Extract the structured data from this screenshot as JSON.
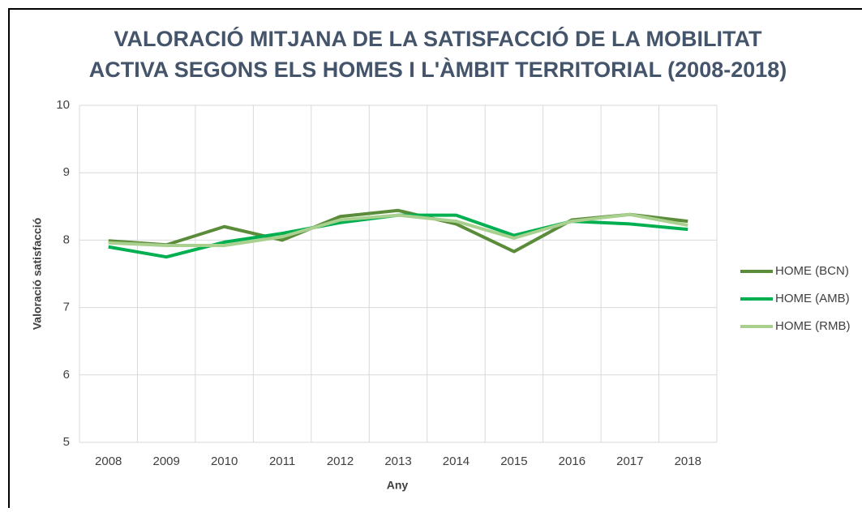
{
  "chart_data": {
    "type": "line",
    "title": [
      "VALORACIÓ MITJANA DE LA SATISFACCIÓ DE LA MOBILITAT",
      "ACTIVA SEGONS ELS HOMES I L'ÀMBIT TERRITORIAL (2008-2018)"
    ],
    "x_label": "Any",
    "y_label": "Valoració satisfacció",
    "categories": [
      "2008",
      "2009",
      "2010",
      "2011",
      "2012",
      "2013",
      "2014",
      "2015",
      "2016",
      "2017",
      "2018"
    ],
    "series": [
      {
        "name": "HOME (BCN)",
        "color": "#5b8c3a",
        "values": [
          7.99,
          7.93,
          8.2,
          8.0,
          8.35,
          8.44,
          8.24,
          7.83,
          8.3,
          8.38,
          8.28
        ]
      },
      {
        "name": "HOME (AMB)",
        "color": "#00b050",
        "values": [
          7.9,
          7.75,
          7.97,
          8.1,
          8.26,
          8.37,
          8.37,
          8.07,
          8.28,
          8.24,
          8.16
        ]
      },
      {
        "name": "HOME (RMB)",
        "color": "#a9d08e",
        "values": [
          7.96,
          7.92,
          7.92,
          8.05,
          8.3,
          8.37,
          8.28,
          8.03,
          8.28,
          8.38,
          8.22
        ]
      }
    ],
    "ylim": [
      5,
      10
    ],
    "yticks": [
      5,
      6,
      7,
      8,
      9,
      10
    ],
    "grid": true,
    "legend": "right"
  }
}
